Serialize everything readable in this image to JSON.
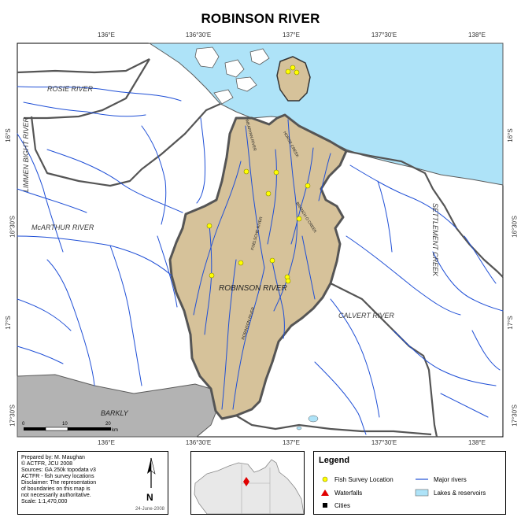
{
  "title": "ROBINSON RIVER",
  "longitude_ticks": [
    "136°E",
    "136°30'E",
    "137°E",
    "137°30'E",
    "138°E"
  ],
  "latitude_ticks": [
    "16°S",
    "16°30'S",
    "17°S",
    "17°30'S"
  ],
  "labels": {
    "rosie_river": "ROSIE RIVER",
    "limmen_bight_river": "LIMMEN BIGHT RIVER",
    "mcarthur_river": "McARTHUR RIVER",
    "settlement_creek": "SETTLEMENT CREEK",
    "robinson_river": "ROBINSON RIVER",
    "calvert_river": "CALVERT RIVER",
    "barkly": "BARKLY",
    "wearyan_river": "WEARYAN RIVER",
    "foelsche_river": "FOELSCHE RIVER",
    "horse_creek": "HORSE CREEK",
    "robinson_river_channel": "ROBINSON RIVER",
    "branch_creek": "BRANCH O CREEK"
  },
  "scale_bar": {
    "ticks": [
      "0",
      "10",
      "20"
    ],
    "unit": "km"
  },
  "info": {
    "lines": [
      "Prepared  by:  M.  Maughan",
      "©     ACTFR,    JCU   2008",
      "Sources: GA 250k topodata v3",
      "ACTFR - fish survey locations",
      "Disclaimer: The representation",
      "of boundaries on this map is",
      "not  necessarily  authoritative.",
      "Scale:   1:1,470,000"
    ],
    "date": "24-June-2008",
    "north_letter": "N"
  },
  "legend": {
    "title": "Legend",
    "items": [
      {
        "label": "Fish Survey Location",
        "symbol": "yellow-circle",
        "color": "#ffff00"
      },
      {
        "label": "Major rivers",
        "symbol": "blue-line",
        "color": "#1f4fd6"
      },
      {
        "label": "Waterfalls",
        "symbol": "red-triangle",
        "color": "#e00000"
      },
      {
        "label": "Lakes & reservoirs",
        "symbol": "light-blue-box",
        "color": "#aee3f8"
      },
      {
        "label": "Cities",
        "symbol": "black-square",
        "color": "#000000"
      }
    ]
  },
  "colors": {
    "sea": "#aee3f8",
    "catchment": "#d6c29a",
    "barkly": "#b3b3b3",
    "river": "#1f4fd6",
    "boundary": "#555555",
    "survey_point": "#ffff00"
  },
  "fish_survey_points_count": 14
}
